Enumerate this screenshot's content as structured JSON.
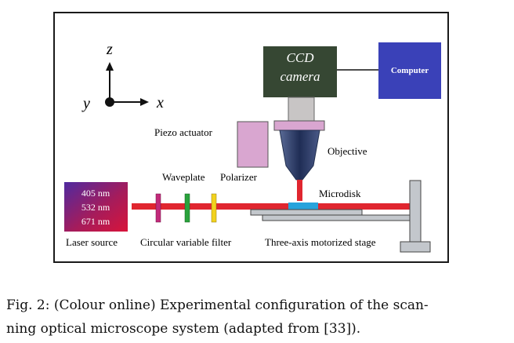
{
  "diagram": {
    "axes": {
      "z": "z",
      "y": "y",
      "x": "x"
    },
    "ccd_camera": {
      "line1": "CCD",
      "line2": "camera",
      "color": "#364733"
    },
    "computer": {
      "label": "Computer",
      "color": "#3a41b8"
    },
    "piezo_actuator": {
      "label": "Piezo actuator",
      "color": "#d9a6d0"
    },
    "objective": {
      "label": "Objective",
      "color": "#2e3e6e"
    },
    "waveplate": {
      "label": "Waveplate"
    },
    "polarizer": {
      "label": "Polarizer"
    },
    "microdisk": {
      "label": "Microdisk"
    },
    "laser_source": {
      "wavelengths": [
        "405 nm",
        "532 nm",
        "671 nm"
      ],
      "label": "Laser source",
      "gradient_colors": [
        "#5b2a9c",
        "#b51d55",
        "#d7143a"
      ]
    },
    "circular_variable_filter": {
      "label": "Circular variable filter"
    },
    "stage": {
      "label": "Three-axis motorized stage"
    },
    "beam_color": "#e0262f"
  },
  "caption": {
    "line1": "Fig. 2: (Colour online) Experimental configuration of the scan-",
    "line2": "ning optical microscope system (adapted from [33])."
  }
}
